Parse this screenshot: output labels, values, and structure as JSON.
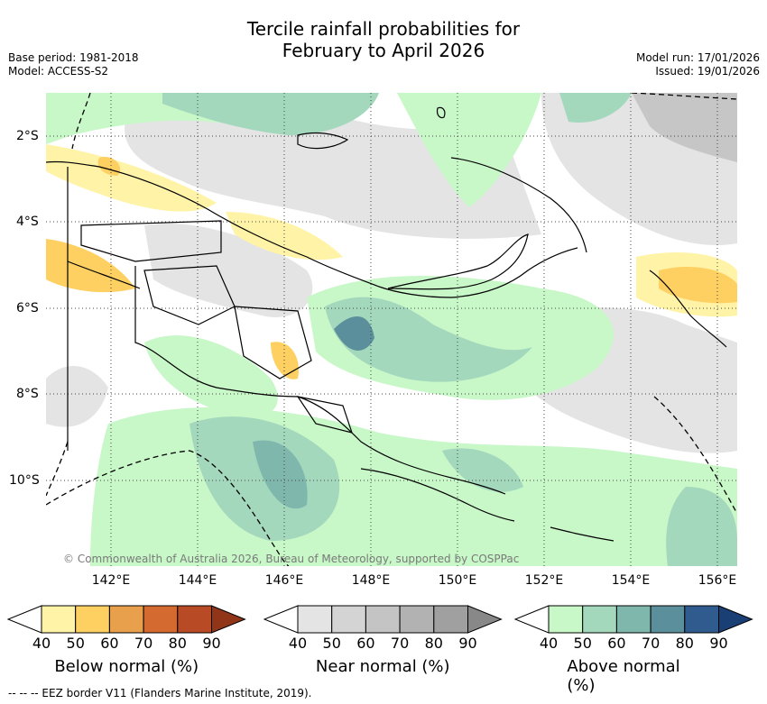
{
  "title_line1": "Tercile rainfall probabilities for",
  "title_line2": "February to April 2026",
  "meta_left": [
    "Base period: 1981-2018",
    "Model: ACCESS-S2"
  ],
  "meta_right": [
    "Model run: 17/01/2026",
    "Issued: 19/01/2026"
  ],
  "lat_ticks": [
    "2°S",
    "4°S",
    "6°S",
    "8°S",
    "10°S"
  ],
  "lon_ticks": [
    "142°E",
    "144°E",
    "146°E",
    "148°E",
    "150°E",
    "152°E",
    "154°E",
    "156°E"
  ],
  "copyright": "© Commonwealth of Australia 2026, Bureau of Meteorology, supported by COSPPac",
  "colorbars": [
    {
      "label": "Below normal (%)",
      "ticks": [
        "40",
        "50",
        "60",
        "70",
        "80",
        "90"
      ],
      "colors": [
        "#fff3a8",
        "#fdd061",
        "#e8a04c",
        "#d46a2f",
        "#b84a25",
        "#913519"
      ]
    },
    {
      "label": "Near normal (%)",
      "ticks": [
        "40",
        "50",
        "60",
        "70",
        "80",
        "90"
      ],
      "colors": [
        "#e4e4e4",
        "#d4d4d4",
        "#c4c4c4",
        "#b2b2b2",
        "#a0a0a0",
        "#888888"
      ]
    },
    {
      "label": "Above normal (%)",
      "ticks": [
        "40",
        "50",
        "60",
        "70",
        "80",
        "90"
      ],
      "colors": [
        "#c8f7c8",
        "#a4d8bd",
        "#7fb7ad",
        "#5b8f9c",
        "#2f5b8f",
        "#1a3f75"
      ]
    }
  ],
  "footer": "-- -- -- EEZ border V11 (Flanders Marine Institute, 2019).",
  "colors": {
    "grid": "#444444",
    "coast": "#000000"
  }
}
